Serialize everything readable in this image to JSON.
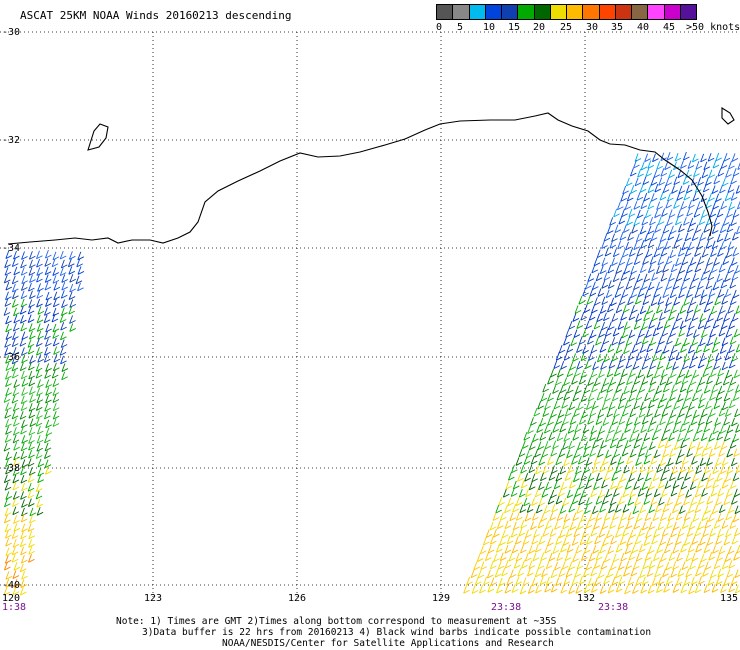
{
  "title": "ASCAT 25KM NOAA Winds 20160213 descending",
  "legend": {
    "colors": [
      "#555555",
      "#888888",
      "#00bbee",
      "#0044dd",
      "#1040b0",
      "#00aa00",
      "#006600",
      "#eedd00",
      "#ffbb00",
      "#ff7700",
      "#ff4400",
      "#cc3311",
      "#886644",
      "#ff44ff",
      "#cc00cc",
      "#551199"
    ],
    "labels": [
      "0",
      "5",
      "10",
      "15",
      "20",
      "25",
      "30",
      "35",
      "40",
      "45",
      ">50 knots"
    ]
  },
  "axes": {
    "lat_labels": [
      "-30",
      "-32",
      "-34",
      "-36",
      "-38",
      "-40"
    ],
    "lon_labels": [
      "120",
      "123",
      "126",
      "129",
      "132",
      "135"
    ],
    "grid": "dotted"
  },
  "pass_times": [
    "1:38",
    "23:38",
    "23:38"
  ],
  "footer": {
    "line1": "Note: 1) Times are GMT 2)Times along bottom correspond to measurement at ~35S",
    "line2": "3)Data buffer is 22 hrs from 20160213 4) Black wind barbs indicate possible contamination",
    "line3": "NOAA/NESDIS/Center for Satellite Applications and Research"
  }
}
